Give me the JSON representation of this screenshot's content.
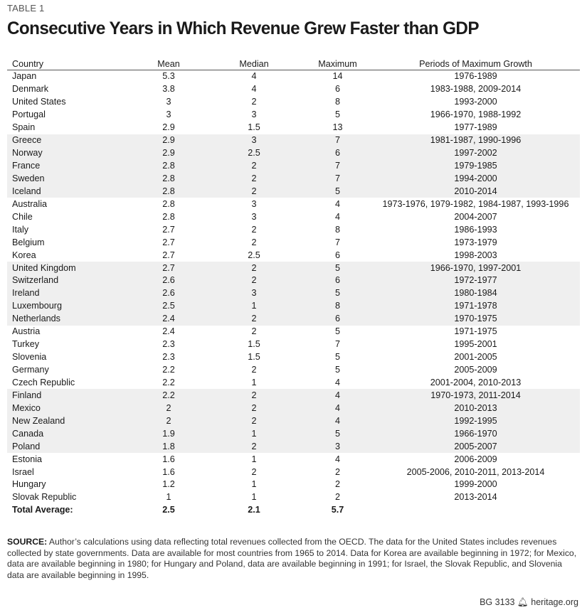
{
  "label": "TABLE 1",
  "title": "Consecutive Years in Which Revenue Grew Faster than GDP",
  "table": {
    "headers": [
      "Country",
      "Mean",
      "Median",
      "Maximum",
      "Periods of Maximum Growth"
    ],
    "rows": [
      [
        "Japan",
        "5.3",
        "4",
        "14",
        "1976-1989"
      ],
      [
        "Denmark",
        "3.8",
        "4",
        "6",
        "1983-1988, 2009-2014"
      ],
      [
        "United States",
        "3",
        "2",
        "8",
        "1993-2000"
      ],
      [
        "Portugal",
        "3",
        "3",
        "5",
        "1966-1970, 1988-1992"
      ],
      [
        "Spain",
        "2.9",
        "1.5",
        "13",
        "1977-1989"
      ],
      [
        "Greece",
        "2.9",
        "3",
        "7",
        "1981-1987, 1990-1996"
      ],
      [
        "Norway",
        "2.9",
        "2.5",
        "6",
        "1997-2002"
      ],
      [
        "France",
        "2.8",
        "2",
        "7",
        "1979-1985"
      ],
      [
        "Sweden",
        "2.8",
        "2",
        "7",
        "1994-2000"
      ],
      [
        "Iceland",
        "2.8",
        "2",
        "5",
        "2010-2014"
      ],
      [
        "Australia",
        "2.8",
        "3",
        "4",
        "1973-1976, 1979-1982, 1984-1987, 1993-1996"
      ],
      [
        "Chile",
        "2.8",
        "3",
        "4",
        "2004-2007"
      ],
      [
        "Italy",
        "2.7",
        "2",
        "8",
        "1986-1993"
      ],
      [
        "Belgium",
        "2.7",
        "2",
        "7",
        "1973-1979"
      ],
      [
        "Korea",
        "2.7",
        "2.5",
        "6",
        "1998-2003"
      ],
      [
        "United Kingdom",
        "2.7",
        "2",
        "5",
        "1966-1970, 1997-2001"
      ],
      [
        "Switzerland",
        "2.6",
        "2",
        "6",
        "1972-1977"
      ],
      [
        "Ireland",
        "2.6",
        "3",
        "5",
        "1980-1984"
      ],
      [
        "Luxembourg",
        "2.5",
        "1",
        "8",
        "1971-1978"
      ],
      [
        "Netherlands",
        "2.4",
        "2",
        "6",
        "1970-1975"
      ],
      [
        "Austria",
        "2.4",
        "2",
        "5",
        "1971-1975"
      ],
      [
        "Turkey",
        "2.3",
        "1.5",
        "7",
        "1995-2001"
      ],
      [
        "Slovenia",
        "2.3",
        "1.5",
        "5",
        "2001-2005"
      ],
      [
        "Germany",
        "2.2",
        "2",
        "5",
        "2005-2009"
      ],
      [
        "Czech Republic",
        "2.2",
        "1",
        "4",
        "2001-2004, 2010-2013"
      ],
      [
        "Finland",
        "2.2",
        "2",
        "4",
        "1970-1973, 2011-2014"
      ],
      [
        "Mexico",
        "2",
        "2",
        "4",
        "2010-2013"
      ],
      [
        "New Zealand",
        "2",
        "2",
        "4",
        "1992-1995"
      ],
      [
        "Canada",
        "1.9",
        "1",
        "5",
        "1966-1970"
      ],
      [
        "Poland",
        "1.8",
        "2",
        "3",
        "2005-2007"
      ],
      [
        "Estonia",
        "1.6",
        "1",
        "4",
        "2006-2009"
      ],
      [
        "Israel",
        "1.6",
        "2",
        "2",
        "2005-2006, 2010-2011, 2013-2014"
      ],
      [
        "Hungary",
        "1.2",
        "1",
        "2",
        "1999-2000"
      ],
      [
        "Slovak Republic",
        "1",
        "1",
        "2",
        "2013-2014"
      ]
    ],
    "total": [
      "Total Average:",
      "2.5",
      "2.1",
      "5.7",
      ""
    ],
    "band_color": "#efefef"
  },
  "source": {
    "lead": "SOURCE:",
    "text": " Author’s calculations using data reflecting total revenues collected from the OECD. The data for the United States includes revenues collected by state governments. Data are available for most countries from 1965 to 2014. Data for Korea are available beginning in 1972; for Mexico, data are available beginning in 1980; for Hungary and Poland, data are available beginning in 1991; for Israel, the Slovak Republic, and Slovenia data are available beginning in 1995."
  },
  "footer": {
    "code": "BG 3133",
    "icon": "liberty-bell-icon",
    "site": "heritage.org"
  }
}
